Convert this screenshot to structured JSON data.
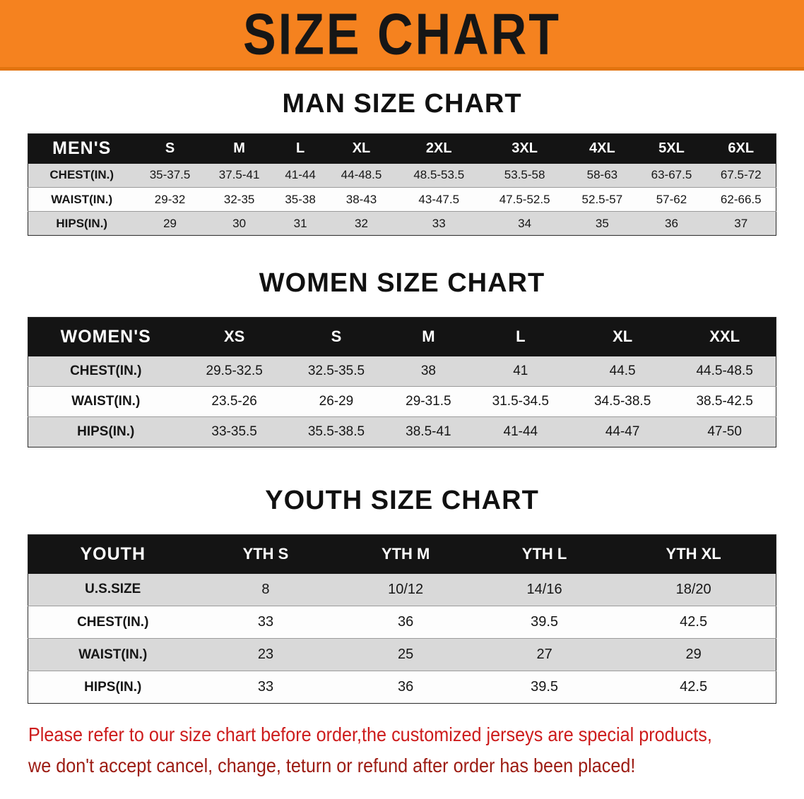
{
  "banner": {
    "title": "SIZE CHART"
  },
  "colors": {
    "banner_bg": "#f5821f",
    "table_header_bg": "#141414",
    "row_alt_gray": "#d9d9d9",
    "note_red_line1": "#cd1c1c",
    "note_red_line2": "#9c1b12"
  },
  "chart_data": [
    {
      "type": "table",
      "title": "MAN SIZE CHART",
      "columns": [
        "MEN'S",
        "S",
        "M",
        "L",
        "XL",
        "2XL",
        "3XL",
        "4XL",
        "5XL",
        "6XL"
      ],
      "rows": [
        [
          "CHEST(IN.)",
          "35-37.5",
          "37.5-41",
          "41-44",
          "44-48.5",
          "48.5-53.5",
          "53.5-58",
          "58-63",
          "63-67.5",
          "67.5-72"
        ],
        [
          "WAIST(IN.)",
          "29-32",
          "32-35",
          "35-38",
          "38-43",
          "43-47.5",
          "47.5-52.5",
          "52.5-57",
          "57-62",
          "62-66.5"
        ],
        [
          "HIPS(IN.)",
          "29",
          "30",
          "31",
          "32",
          "33",
          "34",
          "35",
          "36",
          "37"
        ]
      ]
    },
    {
      "type": "table",
      "title": "WOMEN SIZE CHART",
      "columns": [
        "WOMEN'S",
        "XS",
        "S",
        "M",
        "L",
        "XL",
        "XXL"
      ],
      "rows": [
        [
          "CHEST(IN.)",
          "29.5-32.5",
          "32.5-35.5",
          "38",
          "41",
          "44.5",
          "44.5-48.5"
        ],
        [
          "WAIST(IN.)",
          "23.5-26",
          "26-29",
          "29-31.5",
          "31.5-34.5",
          "34.5-38.5",
          "38.5-42.5"
        ],
        [
          "HIPS(IN.)",
          "33-35.5",
          "35.5-38.5",
          "38.5-41",
          "41-44",
          "44-47",
          "47-50"
        ]
      ]
    },
    {
      "type": "table",
      "title": "YOUTH SIZE CHART",
      "columns": [
        "YOUTH",
        "YTH S",
        "YTH M",
        "YTH L",
        "YTH XL"
      ],
      "rows": [
        [
          "U.S.SIZE",
          "8",
          "10/12",
          "14/16",
          "18/20"
        ],
        [
          "CHEST(IN.)",
          "33",
          "36",
          "39.5",
          "42.5"
        ],
        [
          "WAIST(IN.)",
          "23",
          "25",
          "27",
          "29"
        ],
        [
          "HIPS(IN.)",
          "33",
          "36",
          "39.5",
          "42.5"
        ]
      ]
    }
  ],
  "note": {
    "line1": "Please refer to our size chart before order,the customized jerseys are special products,",
    "line2": "we don't accept cancel, change, teturn or refund after order has been placed!"
  }
}
